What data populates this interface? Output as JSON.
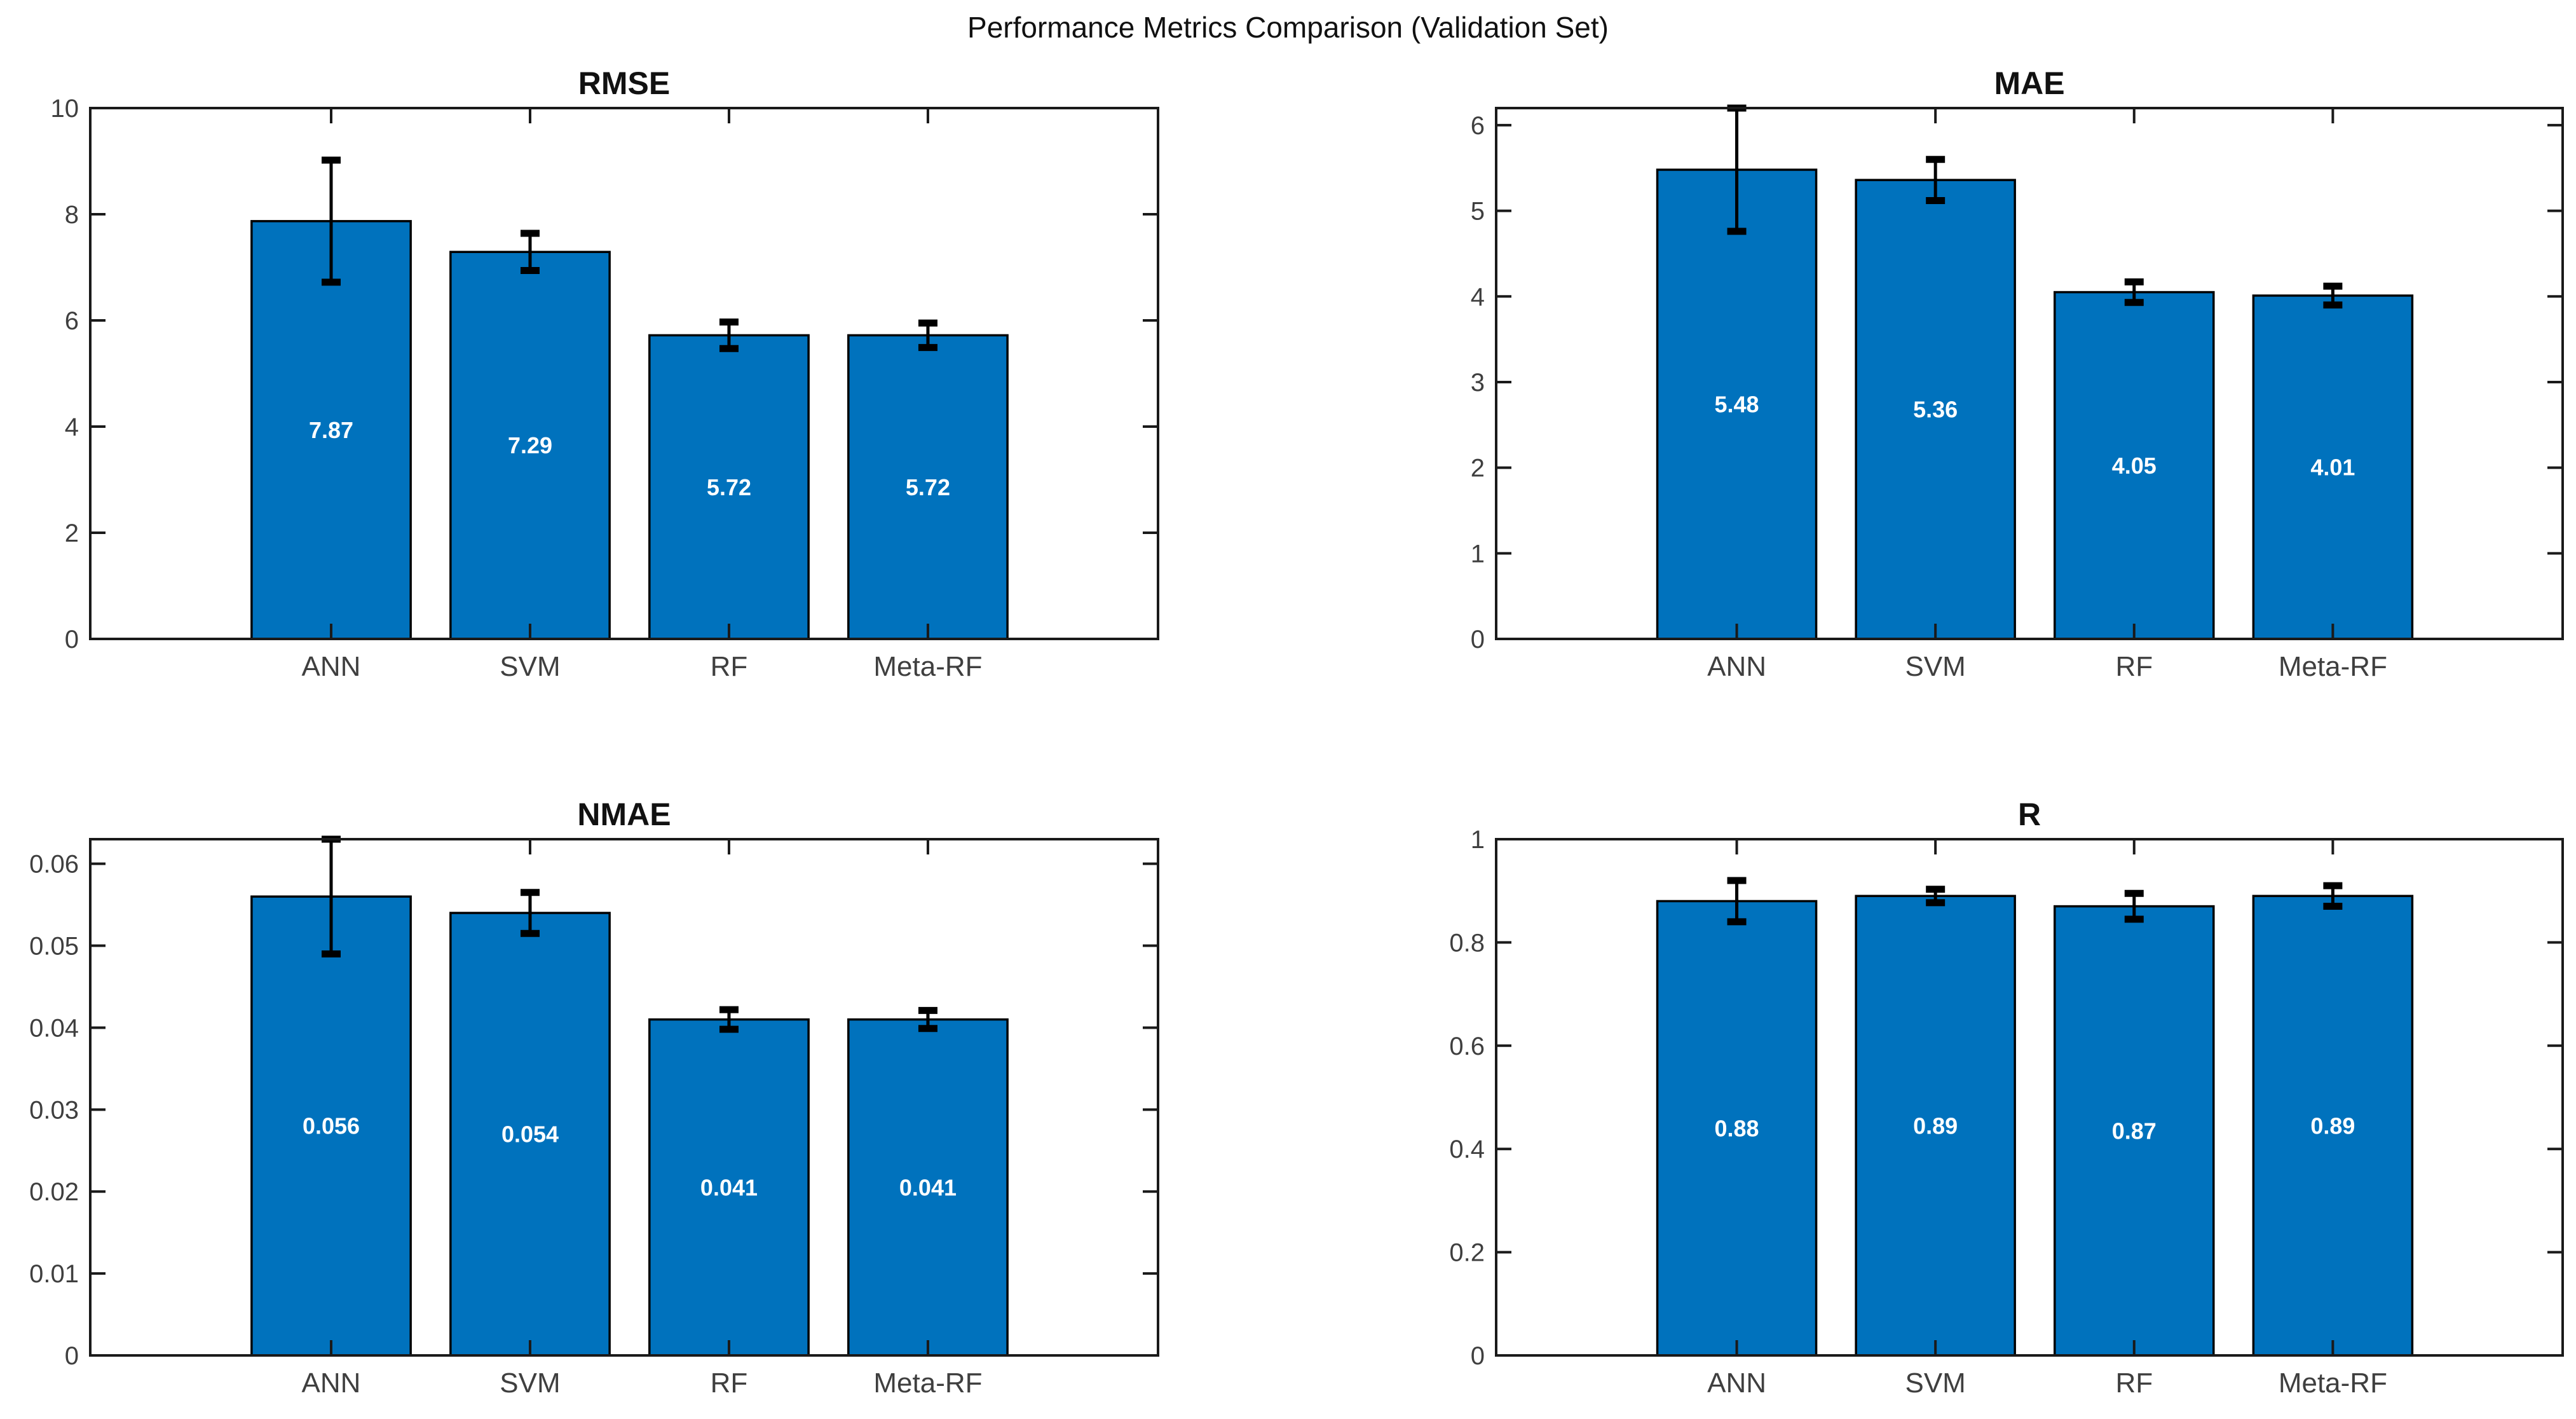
{
  "figure": {
    "suptitle": "Performance Metrics Comparison (Validation Set)",
    "background_color": "#ffffff",
    "bar_fill_color": "#0072BD",
    "bar_edge_color": "#000000",
    "errorbar_color": "#000000",
    "axis_line_color": "#1a1a1a",
    "tick_label_color": "#3f3f3f",
    "category_label_color": "#3f3f3f",
    "bar_value_label_color": "#ffffff",
    "title_color": "#111111"
  },
  "chart_data": [
    {
      "type": "bar",
      "title": "RMSE",
      "position": "top-left",
      "categories": [
        "ANN",
        "SVM",
        "RF",
        "Meta-RF"
      ],
      "values": [
        7.87,
        7.29,
        5.72,
        5.72
      ],
      "value_labels": [
        "7.87",
        "7.29",
        "5.72",
        "5.72"
      ],
      "error_bars": [
        1.15,
        0.35,
        0.25,
        0.23
      ],
      "ylim": [
        0,
        10
      ],
      "yticks": [
        0,
        2,
        4,
        6,
        8,
        10
      ],
      "ytick_labels": [
        "0",
        "2",
        "4",
        "6",
        "8",
        "10"
      ],
      "xlabel": "",
      "ylabel": "",
      "grid": false,
      "legend": null
    },
    {
      "type": "bar",
      "title": "MAE",
      "position": "top-right",
      "categories": [
        "ANN",
        "SVM",
        "RF",
        "Meta-RF"
      ],
      "values": [
        5.48,
        5.36,
        4.05,
        4.01
      ],
      "value_labels": [
        "5.48",
        "5.36",
        "4.05",
        "4.01"
      ],
      "error_bars": [
        0.72,
        0.24,
        0.12,
        0.11
      ],
      "ylim": [
        0,
        6.2
      ],
      "yticks": [
        0,
        1,
        2,
        3,
        4,
        5,
        6
      ],
      "ytick_labels": [
        "0",
        "1",
        "2",
        "3",
        "4",
        "5",
        "6"
      ],
      "xlabel": "",
      "ylabel": "",
      "grid": false,
      "legend": null
    },
    {
      "type": "bar",
      "title": "NMAE",
      "position": "bottom-left",
      "categories": [
        "ANN",
        "SVM",
        "RF",
        "Meta-RF"
      ],
      "values": [
        0.056,
        0.054,
        0.041,
        0.041
      ],
      "value_labels": [
        "0.056",
        "0.054",
        "0.041",
        "0.041"
      ],
      "error_bars": [
        0.007,
        0.0025,
        0.0012,
        0.0011
      ],
      "ylim": [
        0,
        0.063
      ],
      "yticks": [
        0,
        0.01,
        0.02,
        0.03,
        0.04,
        0.05,
        0.06
      ],
      "ytick_labels": [
        "0",
        "0.01",
        "0.02",
        "0.03",
        "0.04",
        "0.05",
        "0.06"
      ],
      "xlabel": "",
      "ylabel": "",
      "grid": false,
      "legend": null
    },
    {
      "type": "bar",
      "title": "R",
      "position": "bottom-right",
      "categories": [
        "ANN",
        "SVM",
        "RF",
        "Meta-RF"
      ],
      "values": [
        0.88,
        0.89,
        0.87,
        0.89
      ],
      "value_labels": [
        "0.88",
        "0.89",
        "0.87",
        "0.89"
      ],
      "error_bars": [
        0.04,
        0.013,
        0.025,
        0.02
      ],
      "ylim": [
        0,
        1
      ],
      "yticks": [
        0,
        0.2,
        0.4,
        0.6,
        0.8,
        1
      ],
      "ytick_labels": [
        "0",
        "0.2",
        "0.4",
        "0.6",
        "0.8",
        "1"
      ],
      "xlabel": "",
      "ylabel": "",
      "grid": false,
      "legend": null
    }
  ]
}
